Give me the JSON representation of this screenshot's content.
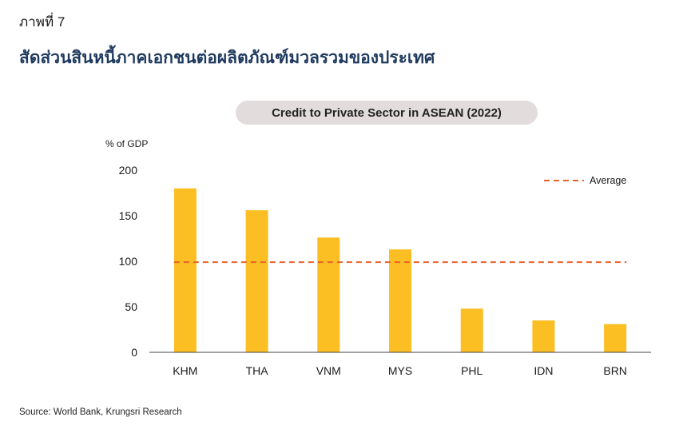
{
  "figure_label": "ภาพที่ 7",
  "figure_title": "สัดส่วนสินหนี้ภาคเอกชนต่อผลิตภัณฑ์มวลรวมของประเทศ",
  "source": "Source: World Bank, Krungsri Research",
  "chart_data": {
    "type": "bar",
    "title": "Credit to Private Sector in ASEAN (2022)",
    "ylabel": "% of GDP",
    "xlabel": "",
    "categories": [
      "KHM",
      "THA",
      "VNM",
      "MYS",
      "PHL",
      "IDN",
      "BRN"
    ],
    "values": [
      180,
      156,
      126,
      113,
      48,
      35,
      31
    ],
    "ylim": [
      0,
      200
    ],
    "yticks": [
      0,
      50,
      100,
      150,
      200
    ],
    "average": {
      "name": "Average",
      "value": 99
    },
    "legend_position": "top-right",
    "grid": false,
    "colors": {
      "bar": "#fbbf24",
      "average_line": "#e8622a",
      "axis": "#444444"
    }
  }
}
